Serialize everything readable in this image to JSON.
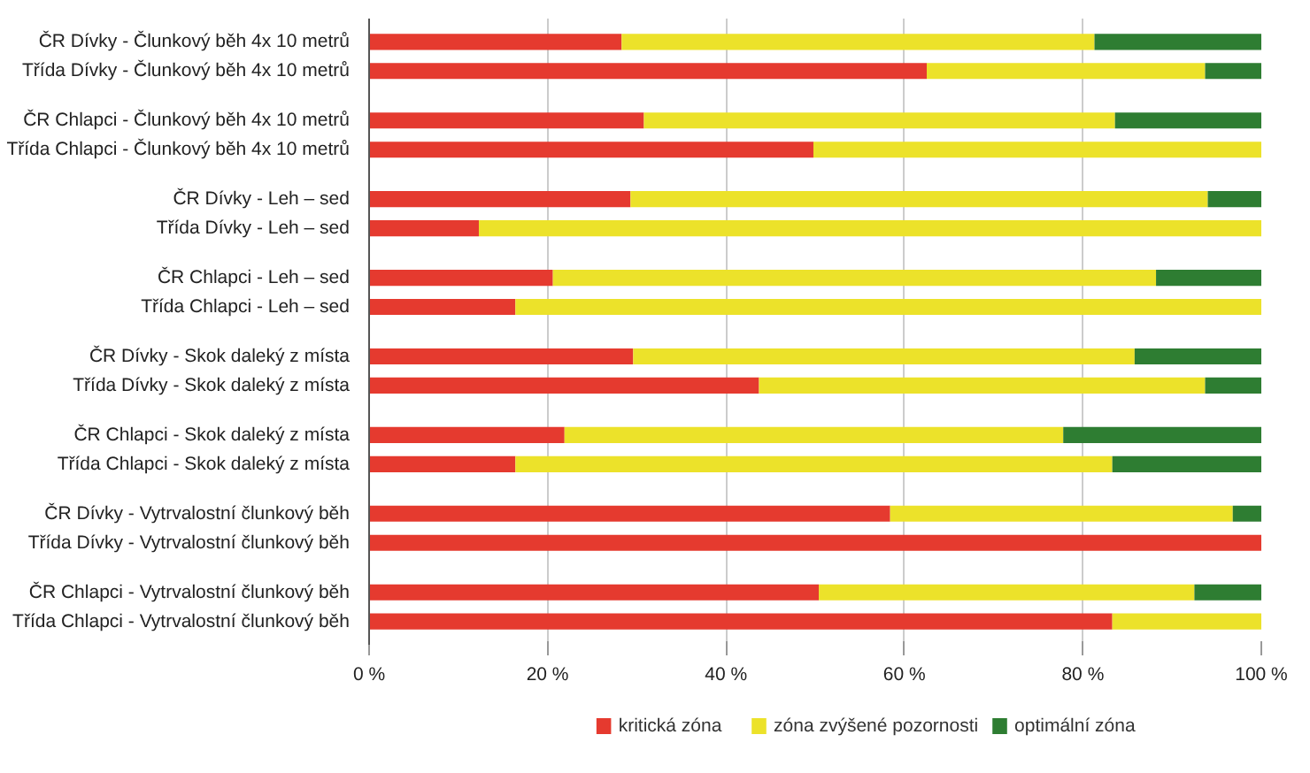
{
  "chart_data": {
    "type": "bar",
    "orientation": "horizontal",
    "stacked": true,
    "categories": [
      "ČR Dívky - Člunkový běh 4x 10 metrů",
      "Třída Dívky - Člunkový běh 4x 10 metrů",
      "ČR Chlapci - Člunkový běh 4x 10 metrů",
      "Třída Chlapci - Člunkový běh 4x 10 metrů",
      "ČR Dívky - Leh – sed",
      "Třída Dívky - Leh – sed",
      "ČR Chlapci - Leh – sed",
      "Třída Chlapci - Leh – sed",
      "ČR Dívky - Skok daleký z místa",
      "Třída Dívky - Skok daleký z místa",
      "ČR Chlapci - Skok daleký z místa",
      "Třída Chlapci - Skok daleký z místa",
      "ČR Dívky - Vytrvalostní člunkový běh",
      "Třída Dívky - Vytrvalostní člunkový běh",
      "ČR Chlapci - Vytrvalostní člunkový běh",
      "Třída Chlapci - Vytrvalostní člunkový běh"
    ],
    "series": [
      {
        "name": "kritická zóna",
        "color": "#e53a2f",
        "values": [
          28.3,
          62.5,
          30.8,
          49.8,
          29.3,
          12.3,
          20.6,
          16.4,
          29.6,
          43.7,
          21.9,
          16.4,
          58.4,
          100,
          50.4,
          83.3
        ]
      },
      {
        "name": "zóna zvýšené pozornosti",
        "color": "#ece22a",
        "values": [
          53,
          31.2,
          52.8,
          50.2,
          64.7,
          87.7,
          67.6,
          83.6,
          56.2,
          50,
          55.9,
          66.9,
          38.4,
          0,
          42.1,
          16.7
        ]
      },
      {
        "name": "optimální zóna",
        "color": "#2e7d32",
        "values": [
          18.7,
          6.3,
          16.4,
          0,
          6,
          0,
          11.8,
          0,
          14.2,
          6.3,
          22.2,
          16.7,
          3.2,
          0,
          7.5,
          0
        ]
      }
    ],
    "xlim": [
      0,
      100
    ],
    "xticks": [
      {
        "value": 0,
        "label": "0 %"
      },
      {
        "value": 20,
        "label": "20 %"
      },
      {
        "value": 40,
        "label": "40 %"
      },
      {
        "value": 60,
        "label": "60 %"
      },
      {
        "value": 80,
        "label": "80 %"
      },
      {
        "value": 100,
        "label": "100 %"
      }
    ],
    "grid": "x",
    "legend": "bottom"
  }
}
